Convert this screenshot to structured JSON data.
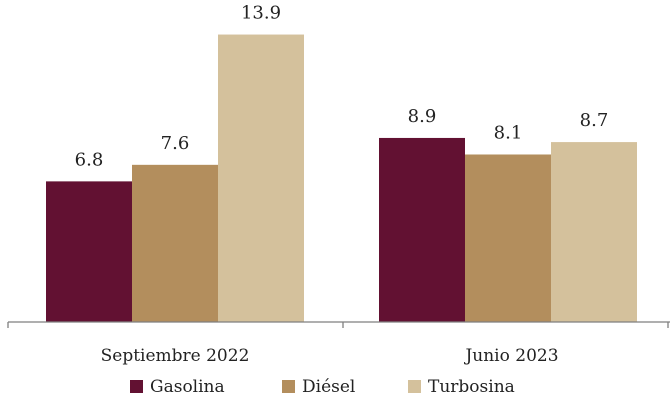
{
  "chart_data": {
    "type": "bar",
    "categories": [
      "Septiembre 2022",
      "Junio 2023"
    ],
    "series": [
      {
        "name": "Gasolina",
        "values": [
          6.8,
          8.9
        ],
        "color": "#621132"
      },
      {
        "name": "Diésel",
        "values": [
          7.6,
          8.1
        ],
        "color": "#b38e5d"
      },
      {
        "name": "Turbosina",
        "values": [
          13.9,
          8.7
        ],
        "color": "#d4c19c"
      }
    ],
    "data_labels": [
      [
        "6.8",
        "8.9"
      ],
      [
        "7.6",
        "8.1"
      ],
      [
        "13.9",
        "8.7"
      ]
    ],
    "ylim": [
      0,
      14.7
    ],
    "grid": false,
    "legend": "bottom",
    "axis_color": "#7f7f7f"
  }
}
